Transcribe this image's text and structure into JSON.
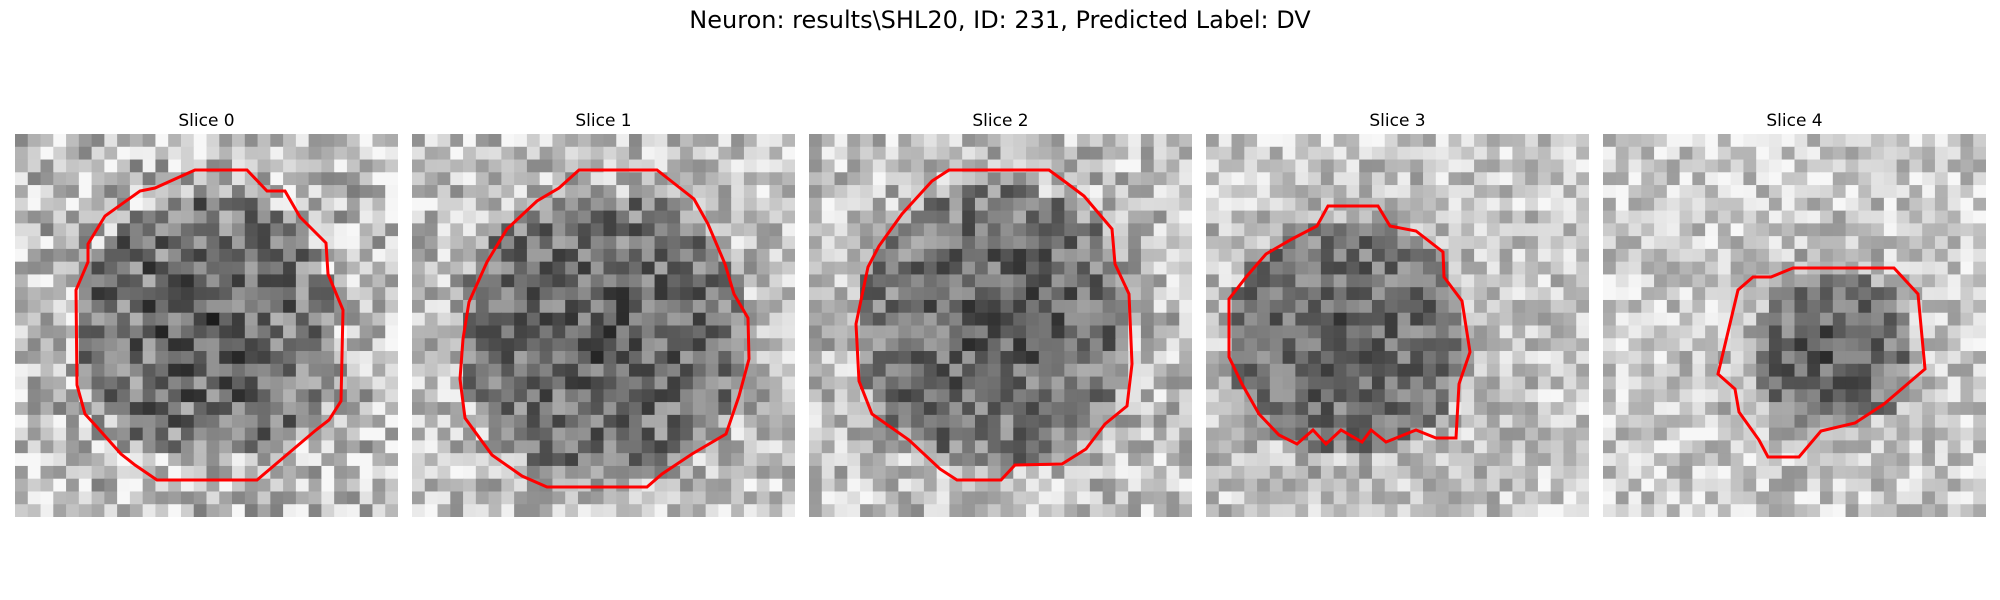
{
  "figure": {
    "title": "Neuron: results\\SHL20, ID: 231, Predicted Label: DV"
  },
  "colors": {
    "contour": "#ff0000",
    "background": "#ffffff"
  },
  "panels": [
    {
      "title": "Slice 0"
    },
    {
      "title": "Slice 1"
    },
    {
      "title": "Slice 2"
    },
    {
      "title": "Slice 3"
    },
    {
      "title": "Slice 4"
    }
  ]
}
